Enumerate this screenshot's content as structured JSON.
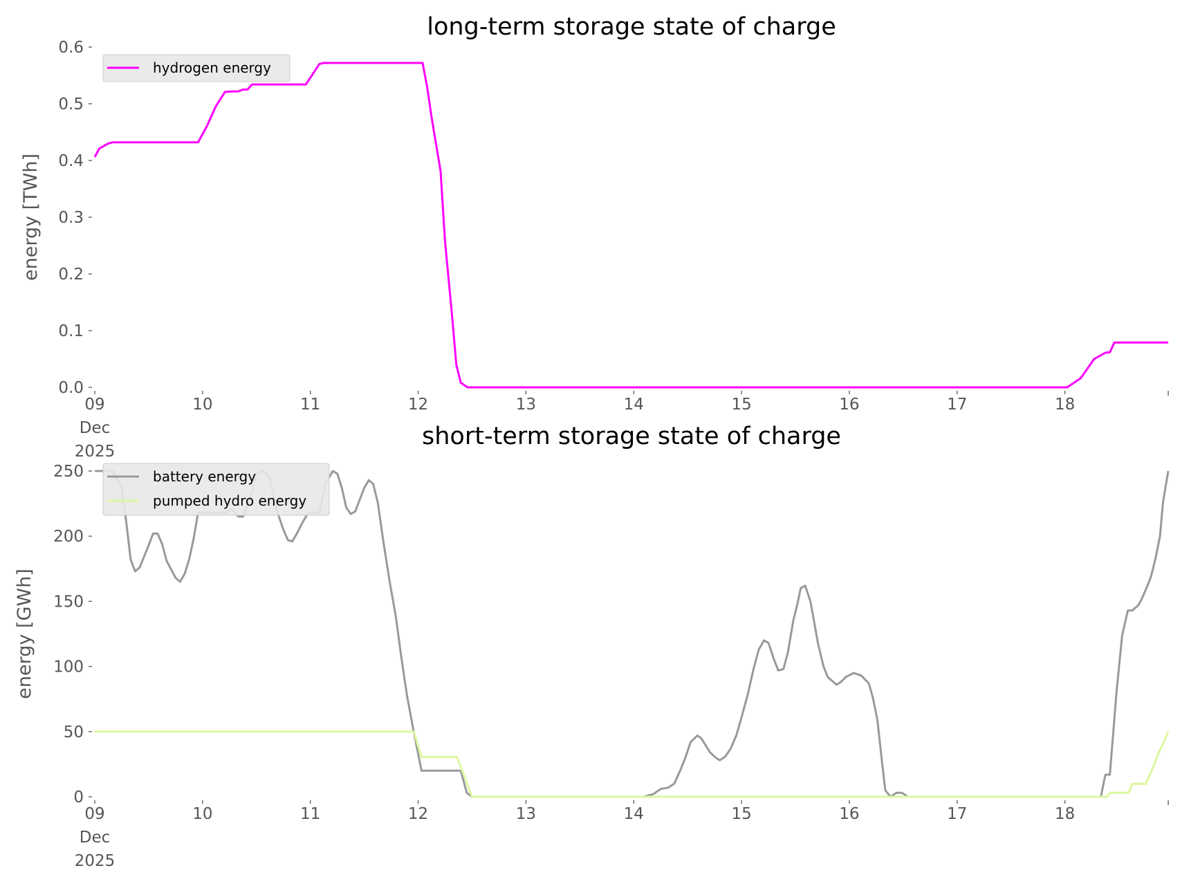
{
  "chart_data": [
    {
      "type": "line",
      "title": "long-term storage state of charge",
      "xlabel": "",
      "ylabel": "energy [TWh]",
      "xlim": [
        "2025-12-09T00:00",
        "2025-12-18T23:00"
      ],
      "ylim": [
        0,
        0.6
      ],
      "yticks": [
        "0.0",
        "0.1",
        "0.2",
        "0.3",
        "0.4",
        "0.5",
        "0.6"
      ],
      "xticks": [
        {
          "date": "2025-12-09T00:00",
          "label": [
            "09",
            "Dec",
            "2025"
          ]
        },
        {
          "date": "2025-12-10T00:00",
          "label": [
            "10"
          ]
        },
        {
          "date": "2025-12-11T00:00",
          "label": [
            "11"
          ]
        },
        {
          "date": "2025-12-12T00:00",
          "label": [
            "12"
          ]
        },
        {
          "date": "2025-12-13T00:00",
          "label": [
            "13"
          ]
        },
        {
          "date": "2025-12-14T00:00",
          "label": [
            "14"
          ]
        },
        {
          "date": "2025-12-15T00:00",
          "label": [
            "15"
          ]
        },
        {
          "date": "2025-12-16T00:00",
          "label": [
            "16"
          ]
        },
        {
          "date": "2025-12-17T00:00",
          "label": [
            "17"
          ]
        },
        {
          "date": "2025-12-18T00:00",
          "label": [
            "18"
          ]
        }
      ],
      "grid": false,
      "legend_placement": "upper-left",
      "series": [
        {
          "name": "hydrogen energy",
          "color": "#ff00ff",
          "points": [
            [
              "2025-12-09T00:00",
              0.406
            ],
            [
              "2025-12-09T01:00",
              0.421
            ],
            [
              "2025-12-09T03:00",
              0.43
            ],
            [
              "2025-12-09T04:00",
              0.432
            ],
            [
              "2025-12-09T23:00",
              0.432
            ],
            [
              "2025-12-10T01:00",
              0.461
            ],
            [
              "2025-12-10T03:00",
              0.496
            ],
            [
              "2025-12-10T05:00",
              0.521
            ],
            [
              "2025-12-10T08:00",
              0.522
            ],
            [
              "2025-12-10T09:00",
              0.525
            ],
            [
              "2025-12-10T10:00",
              0.525
            ],
            [
              "2025-12-10T11:00",
              0.534
            ],
            [
              "2025-12-10T23:00",
              0.534
            ],
            [
              "2025-12-11T00:30",
              0.552
            ],
            [
              "2025-12-11T02:00",
              0.57
            ],
            [
              "2025-12-11T03:00",
              0.572
            ],
            [
              "2025-12-12T01:00",
              0.572
            ],
            [
              "2025-12-12T02:00",
              0.53
            ],
            [
              "2025-12-12T03:00",
              0.476
            ],
            [
              "2025-12-12T05:00",
              0.381
            ],
            [
              "2025-12-12T06:00",
              0.256
            ],
            [
              "2025-12-12T07:30",
              0.13
            ],
            [
              "2025-12-12T08:30",
              0.04
            ],
            [
              "2025-12-12T09:30",
              0.008
            ],
            [
              "2025-12-12T11:00",
              0
            ],
            [
              "2025-12-18T00:30",
              0
            ],
            [
              "2025-12-18T03:30",
              0.016
            ],
            [
              "2025-12-18T06:30",
              0.05
            ],
            [
              "2025-12-18T09:00",
              0.061
            ],
            [
              "2025-12-18T10:00",
              0.062
            ],
            [
              "2025-12-18T11:00",
              0.079
            ],
            [
              "2025-12-18T23:00",
              0.079
            ]
          ]
        }
      ]
    },
    {
      "type": "line",
      "title": "short-term storage state of charge",
      "xlabel": "",
      "ylabel": "energy [GWh]",
      "xlim": [
        "2025-12-09T00:00",
        "2025-12-18T23:00"
      ],
      "ylim": [
        0,
        250
      ],
      "yticks": [
        "0",
        "50",
        "100",
        "150",
        "200",
        "250"
      ],
      "xticks": [
        {
          "date": "2025-12-09T00:00",
          "label": [
            "09",
            "Dec",
            "2025"
          ]
        },
        {
          "date": "2025-12-10T00:00",
          "label": [
            "10"
          ]
        },
        {
          "date": "2025-12-11T00:00",
          "label": [
            "11"
          ]
        },
        {
          "date": "2025-12-12T00:00",
          "label": [
            "12"
          ]
        },
        {
          "date": "2025-12-13T00:00",
          "label": [
            "13"
          ]
        },
        {
          "date": "2025-12-14T00:00",
          "label": [
            "14"
          ]
        },
        {
          "date": "2025-12-15T00:00",
          "label": [
            "15"
          ]
        },
        {
          "date": "2025-12-16T00:00",
          "label": [
            "16"
          ]
        },
        {
          "date": "2025-12-17T00:00",
          "label": [
            "17"
          ]
        },
        {
          "date": "2025-12-18T00:00",
          "label": [
            "18"
          ]
        }
      ],
      "grid": false,
      "legend_placement": "upper-left",
      "series": [
        {
          "name": "battery energy",
          "color": "#999999",
          "points": [
            [
              "2025-12-09T00:00",
              250
            ],
            [
              "2025-12-09T04:00",
              250
            ],
            [
              "2025-12-09T06:00",
              237
            ],
            [
              "2025-12-09T07:00",
              211
            ],
            [
              "2025-12-09T08:00",
              182
            ],
            [
              "2025-12-09T09:00",
              173
            ],
            [
              "2025-12-09T10:00",
              176
            ],
            [
              "2025-12-09T12:00",
              193
            ],
            [
              "2025-12-09T13:00",
              202
            ],
            [
              "2025-12-09T14:00",
              202
            ],
            [
              "2025-12-09T15:00",
              194
            ],
            [
              "2025-12-09T16:00",
              181
            ],
            [
              "2025-12-09T18:00",
              168
            ],
            [
              "2025-12-09T19:00",
              165
            ],
            [
              "2025-12-09T20:00",
              171
            ],
            [
              "2025-12-09T21:00",
              182
            ],
            [
              "2025-12-09T22:00",
              198
            ],
            [
              "2025-12-09T23:00",
              218
            ],
            [
              "2025-12-10T05:00",
              218
            ],
            [
              "2025-12-10T06:30",
              221
            ],
            [
              "2025-12-10T08:00",
              215
            ],
            [
              "2025-12-10T09:00",
              215
            ],
            [
              "2025-12-10T10:30",
              228
            ],
            [
              "2025-12-10T12:00",
              248
            ],
            [
              "2025-12-10T13:40",
              250
            ],
            [
              "2025-12-10T15:00",
              244
            ],
            [
              "2025-12-10T16:30",
              220
            ],
            [
              "2025-12-10T18:00",
              205
            ],
            [
              "2025-12-10T19:00",
              197
            ],
            [
              "2025-12-10T20:00",
              196
            ],
            [
              "2025-12-10T21:00",
              202
            ],
            [
              "2025-12-10T22:20",
              211
            ],
            [
              "2025-12-10T23:30",
              218
            ],
            [
              "2025-12-11T02:00",
              218
            ],
            [
              "2025-12-11T03:20",
              240
            ],
            [
              "2025-12-11T05:00",
              250
            ],
            [
              "2025-12-11T06:00",
              248
            ],
            [
              "2025-12-11T07:00",
              237
            ],
            [
              "2025-12-11T08:00",
              222
            ],
            [
              "2025-12-11T09:00",
              217
            ],
            [
              "2025-12-11T10:00",
              219
            ],
            [
              "2025-12-11T12:00",
              237
            ],
            [
              "2025-12-11T13:00",
              243
            ],
            [
              "2025-12-11T14:00",
              240
            ],
            [
              "2025-12-11T15:00",
              226
            ],
            [
              "2025-12-11T16:20",
              194
            ],
            [
              "2025-12-11T17:45",
              163
            ],
            [
              "2025-12-11T19:00",
              139
            ],
            [
              "2025-12-11T20:10",
              109
            ],
            [
              "2025-12-11T21:30",
              78
            ],
            [
              "2025-12-11T23:00",
              50
            ],
            [
              "2025-12-12T00:45",
              20
            ],
            [
              "2025-12-12T09:30",
              20
            ],
            [
              "2025-12-12T10:50",
              3
            ],
            [
              "2025-12-12T12:00",
              0
            ],
            [
              "2025-12-14T02:10",
              0
            ],
            [
              "2025-12-14T04:20",
              2
            ],
            [
              "2025-12-14T06:00",
              6
            ],
            [
              "2025-12-14T07:40",
              7
            ],
            [
              "2025-12-14T09:00",
              10
            ],
            [
              "2025-12-14T10:20",
              20
            ],
            [
              "2025-12-14T11:30",
              30
            ],
            [
              "2025-12-14T12:40",
              42
            ],
            [
              "2025-12-14T14:10",
              47
            ],
            [
              "2025-12-14T15:00",
              45
            ],
            [
              "2025-12-14T17:00",
              34
            ],
            [
              "2025-12-14T18:15",
              30
            ],
            [
              "2025-12-14T19:10",
              28
            ],
            [
              "2025-12-14T20:25",
              31
            ],
            [
              "2025-12-14T21:35",
              37
            ],
            [
              "2025-12-14T22:50",
              47
            ],
            [
              "2025-12-15T00:00",
              61
            ],
            [
              "2025-12-15T01:25",
              79
            ],
            [
              "2025-12-15T02:40",
              98
            ],
            [
              "2025-12-15T03:50",
              113
            ],
            [
              "2025-12-15T05:00",
              120
            ],
            [
              "2025-12-15T06:00",
              118
            ],
            [
              "2025-12-15T07:10",
              106
            ],
            [
              "2025-12-15T08:10",
              97
            ],
            [
              "2025-12-15T09:20",
              98
            ],
            [
              "2025-12-15T10:20",
              111
            ],
            [
              "2025-12-15T11:30",
              135
            ],
            [
              "2025-12-15T12:30",
              149
            ],
            [
              "2025-12-15T13:10",
              160
            ],
            [
              "2025-12-15T14:10",
              162
            ],
            [
              "2025-12-15T15:20",
              150
            ],
            [
              "2025-12-15T17:00",
              118
            ],
            [
              "2025-12-15T18:15",
              100
            ],
            [
              "2025-12-15T19:10",
              92
            ],
            [
              "2025-12-15T21:10",
              86
            ],
            [
              "2025-12-15T22:05",
              88
            ],
            [
              "2025-12-15T23:15",
              92
            ],
            [
              "2025-12-16T01:00",
              95
            ],
            [
              "2025-12-16T02:40",
              93
            ],
            [
              "2025-12-16T04:20",
              87
            ],
            [
              "2025-12-16T05:15",
              76
            ],
            [
              "2025-12-16T06:15",
              59
            ],
            [
              "2025-12-16T07:10",
              30
            ],
            [
              "2025-12-16T08:00",
              5
            ],
            [
              "2025-12-16T09:10",
              0
            ],
            [
              "2025-12-16T10:30",
              3
            ],
            [
              "2025-12-16T11:45",
              3
            ],
            [
              "2025-12-16T13:00",
              0
            ],
            [
              "2025-12-18T08:00",
              0
            ],
            [
              "2025-12-18T09:00",
              17
            ],
            [
              "2025-12-18T10:00",
              17
            ],
            [
              "2025-12-18T11:30",
              81
            ],
            [
              "2025-12-18T12:45",
              124
            ],
            [
              "2025-12-18T14:00",
              143
            ],
            [
              "2025-12-18T15:00",
              143
            ],
            [
              "2025-12-18T16:20",
              147
            ],
            [
              "2025-12-18T17:00",
              151
            ],
            [
              "2025-12-18T18:15",
              161
            ],
            [
              "2025-12-18T19:10",
              169
            ],
            [
              "2025-12-18T20:10",
              183
            ],
            [
              "2025-12-18T21:10",
              200
            ],
            [
              "2025-12-18T21:50",
              226
            ],
            [
              "2025-12-18T23:00",
              250
            ]
          ]
        },
        {
          "name": "pumped hydro energy",
          "color": "#dcf7a0",
          "points": [
            [
              "2025-12-09T00:00",
              50
            ],
            [
              "2025-12-11T23:00",
              50
            ],
            [
              "2025-12-12T00:45",
              30.5
            ],
            [
              "2025-12-12T08:40",
              30.5
            ],
            [
              "2025-12-12T12:00",
              0
            ],
            [
              "2025-12-18T09:20",
              0
            ],
            [
              "2025-12-18T10:00",
              3
            ],
            [
              "2025-12-18T14:10",
              3
            ],
            [
              "2025-12-18T15:00",
              10
            ],
            [
              "2025-12-18T18:00",
              10
            ],
            [
              "2025-12-18T19:40",
              23
            ],
            [
              "2025-12-18T21:00",
              35
            ],
            [
              "2025-12-18T21:40",
              39
            ],
            [
              "2025-12-18T23:00",
              50
            ]
          ]
        }
      ]
    }
  ]
}
